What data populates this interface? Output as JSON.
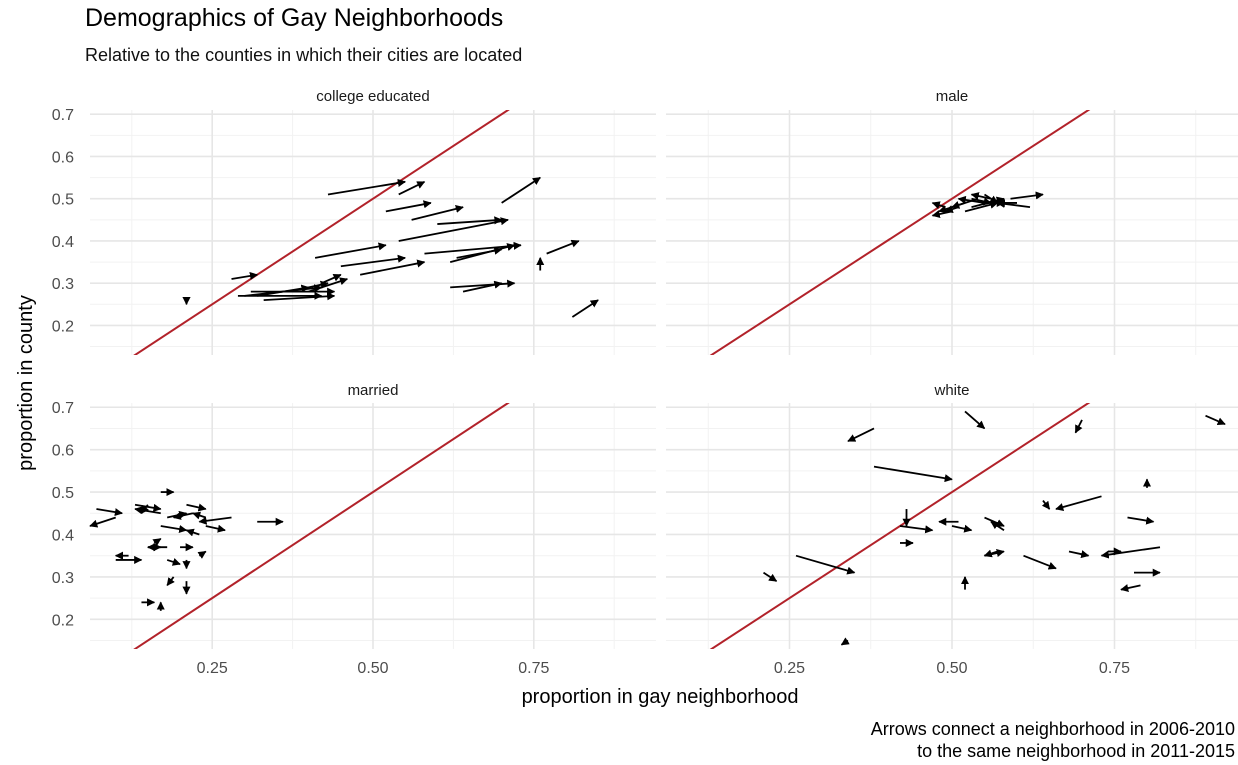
{
  "chart_data": {
    "type": "faceted arrow scatter",
    "title": "Demographics of Gay Neighborhoods",
    "subtitle": "Relative to the counties in which their cities are located",
    "xlabel": "proportion in gay neighborhood",
    "ylabel": "proportion in county",
    "caption": [
      "Arrows connect a neighborhood in 2006-2010",
      "to the same neighborhood in 2011-2015"
    ],
    "x_ticks": [
      "0.25",
      "0.50",
      "0.75"
    ],
    "y_ticks": [
      "0.2",
      "0.3",
      "0.4",
      "0.5",
      "0.6",
      "0.7"
    ],
    "xlim": [
      0.06,
      0.94
    ],
    "ylim": [
      0.13,
      0.71
    ],
    "grid": true,
    "reference_line": {
      "slope": 1,
      "intercept": 0,
      "color": "#b2222a"
    },
    "facets": [
      {
        "label": "college educated",
        "arrows": [
          [
            0.43,
            0.51,
            0.55,
            0.54
          ],
          [
            0.54,
            0.51,
            0.58,
            0.54
          ],
          [
            0.52,
            0.47,
            0.59,
            0.49
          ],
          [
            0.56,
            0.45,
            0.64,
            0.48
          ],
          [
            0.7,
            0.49,
            0.76,
            0.55
          ],
          [
            0.6,
            0.44,
            0.7,
            0.45
          ],
          [
            0.54,
            0.4,
            0.71,
            0.45
          ],
          [
            0.41,
            0.36,
            0.52,
            0.39
          ],
          [
            0.58,
            0.37,
            0.73,
            0.39
          ],
          [
            0.62,
            0.35,
            0.72,
            0.39
          ],
          [
            0.77,
            0.37,
            0.82,
            0.4
          ],
          [
            0.45,
            0.34,
            0.55,
            0.36
          ],
          [
            0.48,
            0.32,
            0.58,
            0.35
          ],
          [
            0.63,
            0.36,
            0.7,
            0.38
          ],
          [
            0.76,
            0.33,
            0.76,
            0.36
          ],
          [
            0.62,
            0.29,
            0.72,
            0.3
          ],
          [
            0.64,
            0.28,
            0.7,
            0.3
          ],
          [
            0.4,
            0.28,
            0.46,
            0.31
          ],
          [
            0.42,
            0.3,
            0.45,
            0.32
          ],
          [
            0.37,
            0.28,
            0.43,
            0.3
          ],
          [
            0.31,
            0.28,
            0.44,
            0.28
          ],
          [
            0.3,
            0.27,
            0.42,
            0.29
          ],
          [
            0.32,
            0.27,
            0.4,
            0.29
          ],
          [
            0.29,
            0.27,
            0.42,
            0.27
          ],
          [
            0.33,
            0.26,
            0.44,
            0.27
          ],
          [
            0.28,
            0.31,
            0.32,
            0.32
          ],
          [
            0.81,
            0.22,
            0.85,
            0.26
          ],
          [
            0.21,
            0.26,
            0.21,
            0.25
          ]
        ]
      },
      {
        "label": "male",
        "arrows": [
          [
            0.59,
            0.5,
            0.64,
            0.51
          ],
          [
            0.6,
            0.49,
            0.57,
            0.49
          ],
          [
            0.62,
            0.48,
            0.57,
            0.49
          ],
          [
            0.55,
            0.49,
            0.58,
            0.49
          ],
          [
            0.53,
            0.48,
            0.58,
            0.5
          ],
          [
            0.52,
            0.47,
            0.57,
            0.49
          ],
          [
            0.49,
            0.48,
            0.47,
            0.49
          ],
          [
            0.5,
            0.47,
            0.47,
            0.46
          ],
          [
            0.51,
            0.48,
            0.49,
            0.47
          ],
          [
            0.54,
            0.5,
            0.5,
            0.48
          ],
          [
            0.55,
            0.49,
            0.51,
            0.5
          ],
          [
            0.56,
            0.5,
            0.53,
            0.51
          ],
          [
            0.53,
            0.5,
            0.56,
            0.49
          ],
          [
            0.52,
            0.49,
            0.48,
            0.47
          ],
          [
            0.55,
            0.51,
            0.57,
            0.49
          ]
        ]
      },
      {
        "label": "married",
        "arrows": [
          [
            0.07,
            0.46,
            0.11,
            0.45
          ],
          [
            0.1,
            0.44,
            0.06,
            0.42
          ],
          [
            0.13,
            0.47,
            0.17,
            0.46
          ],
          [
            0.17,
            0.45,
            0.13,
            0.46
          ],
          [
            0.15,
            0.47,
            0.14,
            0.45
          ],
          [
            0.17,
            0.5,
            0.19,
            0.5
          ],
          [
            0.21,
            0.47,
            0.24,
            0.46
          ],
          [
            0.18,
            0.44,
            0.21,
            0.45
          ],
          [
            0.22,
            0.45,
            0.19,
            0.44
          ],
          [
            0.24,
            0.44,
            0.22,
            0.45
          ],
          [
            0.28,
            0.44,
            0.23,
            0.43
          ],
          [
            0.32,
            0.43,
            0.36,
            0.43
          ],
          [
            0.24,
            0.42,
            0.27,
            0.41
          ],
          [
            0.17,
            0.42,
            0.21,
            0.41
          ],
          [
            0.23,
            0.4,
            0.21,
            0.41
          ],
          [
            0.16,
            0.38,
            0.17,
            0.39
          ],
          [
            0.12,
            0.35,
            0.1,
            0.35
          ],
          [
            0.1,
            0.34,
            0.14,
            0.34
          ],
          [
            0.15,
            0.37,
            0.17,
            0.37
          ],
          [
            0.18,
            0.37,
            0.15,
            0.37
          ],
          [
            0.2,
            0.37,
            0.22,
            0.37
          ],
          [
            0.23,
            0.35,
            0.24,
            0.36
          ],
          [
            0.18,
            0.34,
            0.2,
            0.33
          ],
          [
            0.21,
            0.34,
            0.21,
            0.32
          ],
          [
            0.19,
            0.3,
            0.18,
            0.28
          ],
          [
            0.21,
            0.29,
            0.21,
            0.26
          ],
          [
            0.14,
            0.24,
            0.16,
            0.24
          ],
          [
            0.17,
            0.22,
            0.17,
            0.24
          ]
        ]
      },
      {
        "label": "white",
        "arrows": [
          [
            0.38,
            0.65,
            0.34,
            0.62
          ],
          [
            0.38,
            0.56,
            0.5,
            0.53
          ],
          [
            0.52,
            0.69,
            0.55,
            0.65
          ],
          [
            0.7,
            0.67,
            0.69,
            0.64
          ],
          [
            0.89,
            0.68,
            0.92,
            0.66
          ],
          [
            0.43,
            0.46,
            0.43,
            0.42
          ],
          [
            0.73,
            0.49,
            0.66,
            0.46
          ],
          [
            0.64,
            0.48,
            0.65,
            0.46
          ],
          [
            0.8,
            0.51,
            0.8,
            0.53
          ],
          [
            0.42,
            0.42,
            0.47,
            0.41
          ],
          [
            0.51,
            0.43,
            0.48,
            0.43
          ],
          [
            0.5,
            0.42,
            0.53,
            0.41
          ],
          [
            0.55,
            0.44,
            0.58,
            0.42
          ],
          [
            0.58,
            0.41,
            0.56,
            0.43
          ],
          [
            0.77,
            0.44,
            0.81,
            0.43
          ],
          [
            0.42,
            0.38,
            0.44,
            0.38
          ],
          [
            0.26,
            0.35,
            0.35,
            0.31
          ],
          [
            0.55,
            0.35,
            0.58,
            0.36
          ],
          [
            0.57,
            0.36,
            0.55,
            0.35
          ],
          [
            0.61,
            0.35,
            0.66,
            0.32
          ],
          [
            0.68,
            0.36,
            0.71,
            0.35
          ],
          [
            0.82,
            0.37,
            0.73,
            0.35
          ],
          [
            0.74,
            0.36,
            0.76,
            0.36
          ],
          [
            0.78,
            0.31,
            0.82,
            0.31
          ],
          [
            0.79,
            0.28,
            0.76,
            0.27
          ],
          [
            0.52,
            0.27,
            0.52,
            0.3
          ],
          [
            0.21,
            0.31,
            0.23,
            0.29
          ],
          [
            0.34,
            0.15,
            0.33,
            0.14
          ]
        ]
      }
    ]
  }
}
